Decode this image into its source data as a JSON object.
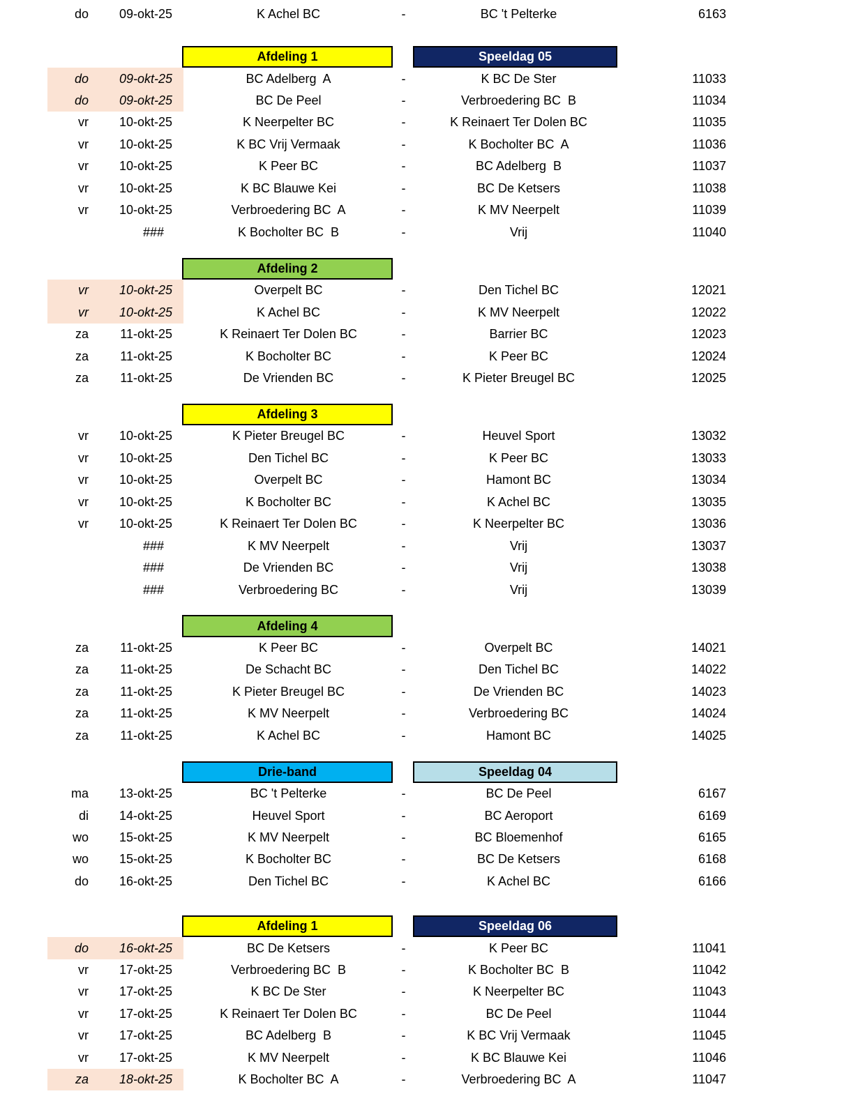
{
  "separator": "-",
  "colors": {
    "row_highlight": "#FBE3D4",
    "division_yellow": "#FFFF00",
    "division_green": "#92D050",
    "division_cyan": "#00B0F0",
    "speeldag_navy": "#112664",
    "speeldag_lightblue": "#B7DEE8"
  },
  "sections": [
    {
      "rows": [
        {
          "day": "do",
          "date": "09-okt-25",
          "home": "K Achel BC",
          "away": "BC 't Pelterke",
          "match_no": "6163"
        }
      ]
    },
    {
      "division": {
        "label": "Afdeling 1",
        "bg": "#FFFF00",
        "fg": "#000000"
      },
      "speeldag": {
        "label": "Speeldag 05",
        "bg": "#112664",
        "fg": "#FFFFFF"
      },
      "rows": [
        {
          "day": "do",
          "date": "09-okt-25",
          "home": "BC Adelberg  A",
          "away": "K BC De Ster",
          "match_no": "11033",
          "highlighted": true
        },
        {
          "day": "do",
          "date": "09-okt-25",
          "home": "BC De Peel",
          "away": "Verbroedering BC  B",
          "match_no": "11034",
          "highlighted": true
        },
        {
          "day": "vr",
          "date": "10-okt-25",
          "home": "K Neerpelter BC",
          "away": "K Reinaert Ter Dolen BC",
          "match_no": "11035"
        },
        {
          "day": "vr",
          "date": "10-okt-25",
          "home": "K BC Vrij Vermaak",
          "away": "K Bocholter BC  A",
          "match_no": "11036"
        },
        {
          "day": "vr",
          "date": "10-okt-25",
          "home": "K Peer BC",
          "away": "BC Adelberg  B",
          "match_no": "11037"
        },
        {
          "day": "vr",
          "date": "10-okt-25",
          "home": "K BC Blauwe Kei",
          "away": "BC De Ketsers",
          "match_no": "11038"
        },
        {
          "day": "vr",
          "date": "10-okt-25",
          "home": "Verbroedering BC  A",
          "away": "K MV Neerpelt",
          "match_no": "11039"
        },
        {
          "date": "###",
          "home": "K Bocholter BC  B",
          "away": "Vrij",
          "match_no": "11040"
        }
      ]
    },
    {
      "division": {
        "label": "Afdeling 2",
        "bg": "#92D050",
        "fg": "#000000"
      },
      "rows": [
        {
          "day": "vr",
          "date": "10-okt-25",
          "home": "Overpelt BC",
          "away": "Den Tichel BC",
          "match_no": "12021",
          "highlighted": true
        },
        {
          "day": "vr",
          "date": "10-okt-25",
          "home": "K Achel BC",
          "away": "K MV Neerpelt",
          "match_no": "12022",
          "highlighted": true
        },
        {
          "day": "za",
          "date": "11-okt-25",
          "home": "K Reinaert Ter Dolen BC",
          "away": "Barrier BC",
          "match_no": "12023"
        },
        {
          "day": "za",
          "date": "11-okt-25",
          "home": "K Bocholter BC",
          "away": "K Peer BC",
          "match_no": "12024"
        },
        {
          "day": "za",
          "date": "11-okt-25",
          "home": "De Vrienden BC",
          "away": "K Pieter Breugel BC",
          "match_no": "12025"
        }
      ]
    },
    {
      "division": {
        "label": "Afdeling 3",
        "bg": "#FFFF00",
        "fg": "#000000"
      },
      "rows": [
        {
          "day": "vr",
          "date": "10-okt-25",
          "home": "K Pieter Breugel BC",
          "away": "Heuvel Sport",
          "match_no": "13032"
        },
        {
          "day": "vr",
          "date": "10-okt-25",
          "home": "Den Tichel BC",
          "away": "K Peer BC",
          "match_no": "13033"
        },
        {
          "day": "vr",
          "date": "10-okt-25",
          "home": "Overpelt BC",
          "away": "Hamont BC",
          "match_no": "13034"
        },
        {
          "day": "vr",
          "date": "10-okt-25",
          "home": "K Bocholter BC",
          "away": "K Achel BC",
          "match_no": "13035"
        },
        {
          "day": "vr",
          "date": "10-okt-25",
          "home": "K Reinaert Ter Dolen BC",
          "away": "K Neerpelter BC",
          "match_no": "13036"
        },
        {
          "date": "###",
          "home": "K MV Neerpelt",
          "away": "Vrij",
          "match_no": "13037"
        },
        {
          "date": "###",
          "home": "De Vrienden BC",
          "away": "Vrij",
          "match_no": "13038"
        },
        {
          "date": "###",
          "home": "Verbroedering BC",
          "away": "Vrij",
          "match_no": "13039"
        }
      ]
    },
    {
      "division": {
        "label": "Afdeling 4",
        "bg": "#92D050",
        "fg": "#000000"
      },
      "rows": [
        {
          "day": "za",
          "date": "11-okt-25",
          "home": "K Peer BC",
          "away": "Overpelt BC",
          "match_no": "14021"
        },
        {
          "day": "za",
          "date": "11-okt-25",
          "home": "De Schacht BC",
          "away": "Den Tichel BC",
          "match_no": "14022"
        },
        {
          "day": "za",
          "date": "11-okt-25",
          "home": "K Pieter Breugel BC",
          "away": "De Vrienden BC",
          "match_no": "14023"
        },
        {
          "day": "za",
          "date": "11-okt-25",
          "home": "K MV Neerpelt",
          "away": "Verbroedering BC",
          "match_no": "14024"
        },
        {
          "day": "za",
          "date": "11-okt-25",
          "home": "K Achel BC",
          "away": "Hamont BC",
          "match_no": "14025"
        }
      ]
    },
    {
      "division": {
        "label": "Drie-band",
        "bg": "#00B0F0",
        "fg": "#000000"
      },
      "speeldag": {
        "label": "Speeldag 04",
        "bg": "#B7DEE8",
        "fg": "#000000"
      },
      "rows": [
        {
          "day": "ma",
          "date": "13-okt-25",
          "home": "BC 't Pelterke",
          "away": "BC De Peel",
          "match_no": "6167"
        },
        {
          "day": "di",
          "date": "14-okt-25",
          "home": "Heuvel Sport",
          "away": "BC Aeroport",
          "match_no": "6169"
        },
        {
          "day": "wo",
          "date": "15-okt-25",
          "home": "K MV Neerpelt",
          "away": "BC Bloemenhof",
          "match_no": "6165"
        },
        {
          "day": "wo",
          "date": "15-okt-25",
          "home": "K Bocholter BC",
          "away": "BC De Ketsers",
          "match_no": "6168"
        },
        {
          "day": "do",
          "date": "16-okt-25",
          "home": "Den Tichel BC",
          "away": "K Achel BC",
          "match_no": "6166"
        }
      ]
    },
    {
      "division": {
        "label": "Afdeling 1",
        "bg": "#FFFF00",
        "fg": "#000000"
      },
      "speeldag": {
        "label": "Speeldag 06",
        "bg": "#112664",
        "fg": "#FFFFFF"
      },
      "rows": [
        {
          "day": "do",
          "date": "16-okt-25",
          "home": "BC De Ketsers",
          "away": "K Peer BC",
          "match_no": "11041",
          "highlighted": true
        },
        {
          "day": "vr",
          "date": "17-okt-25",
          "home": "Verbroedering BC  B",
          "away": "K Bocholter BC  B",
          "match_no": "11042"
        },
        {
          "day": "vr",
          "date": "17-okt-25",
          "home": "K BC De Ster",
          "away": "K Neerpelter BC",
          "match_no": "11043"
        },
        {
          "day": "vr",
          "date": "17-okt-25",
          "home": "K Reinaert Ter Dolen BC",
          "away": "BC De Peel",
          "match_no": "11044"
        },
        {
          "day": "vr",
          "date": "17-okt-25",
          "home": "BC Adelberg  B",
          "away": "K BC Vrij Vermaak",
          "match_no": "11045"
        },
        {
          "day": "vr",
          "date": "17-okt-25",
          "home": "K MV Neerpelt",
          "away": "K BC Blauwe Kei",
          "match_no": "11046"
        },
        {
          "day": "za",
          "date": "18-okt-25",
          "home": "K Bocholter BC  A",
          "away": "Verbroedering BC  A",
          "match_no": "11047",
          "highlighted": true
        }
      ]
    }
  ]
}
